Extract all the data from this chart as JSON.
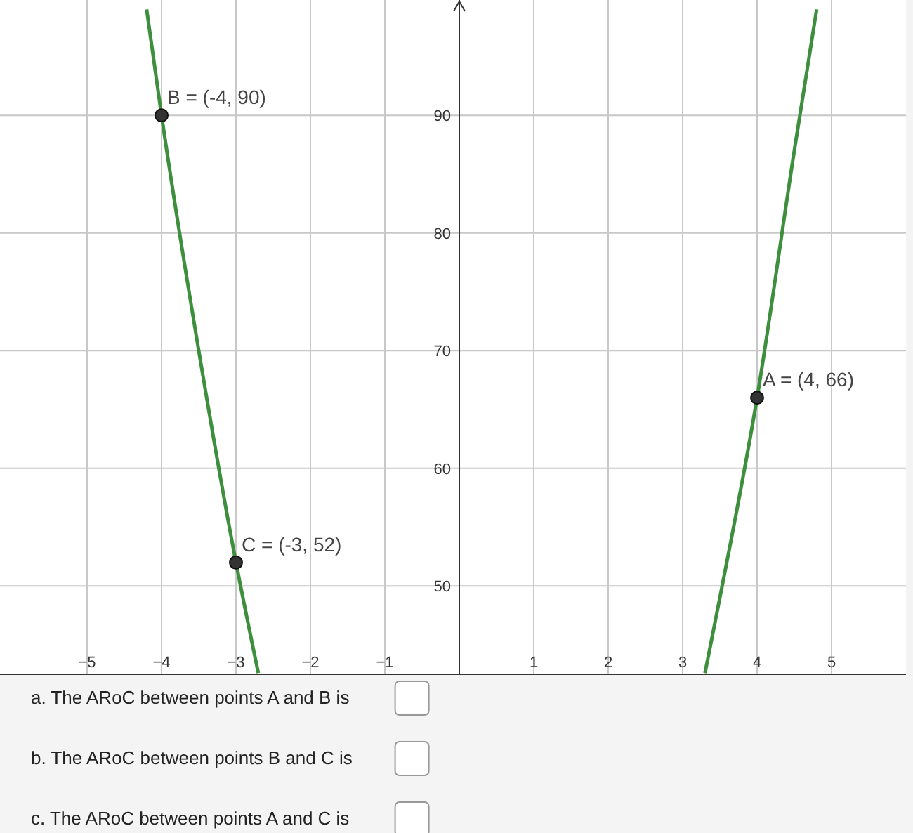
{
  "chart_data": {
    "type": "line",
    "xlim": [
      -6.17,
      6.0
    ],
    "ylim": [
      42.5,
      99.8
    ],
    "xticks": [
      -5,
      -4,
      -3,
      -2,
      -1,
      1,
      2,
      3,
      4,
      5
    ],
    "yticks": [
      50,
      60,
      70,
      80,
      90
    ],
    "grid": true,
    "line_style": "solid",
    "marker": "none",
    "series": [
      {
        "color": "#3d8f3d",
        "x": [
          -4.2,
          -4,
          -3.5,
          -3,
          -2.7
        ],
        "values": [
          99,
          90,
          70,
          52,
          42.6
        ]
      },
      {
        "color": "#3d8f3d",
        "x": [
          3.3,
          3.5,
          4,
          4.5,
          4.8
        ],
        "values": [
          42.6,
          49,
          66,
          87,
          99
        ]
      },
      {
        "type": "scatter",
        "marker": "circle",
        "color": "#333333",
        "x": [
          4,
          -4,
          -3
        ],
        "values": [
          66,
          90,
          52
        ]
      }
    ],
    "annotations": [
      {
        "text": "A = (4, 66)",
        "x": 4,
        "y": 66
      },
      {
        "text": "B = (-4, 90)",
        "x": -4,
        "y": 90
      },
      {
        "text": "C = (-3, 52)",
        "x": -3,
        "y": 52
      },
      "a. The ARoC between points A and B is",
      "b. The ARoC between points B and C is",
      "c. The ARoC between points A and C is"
    ]
  }
}
